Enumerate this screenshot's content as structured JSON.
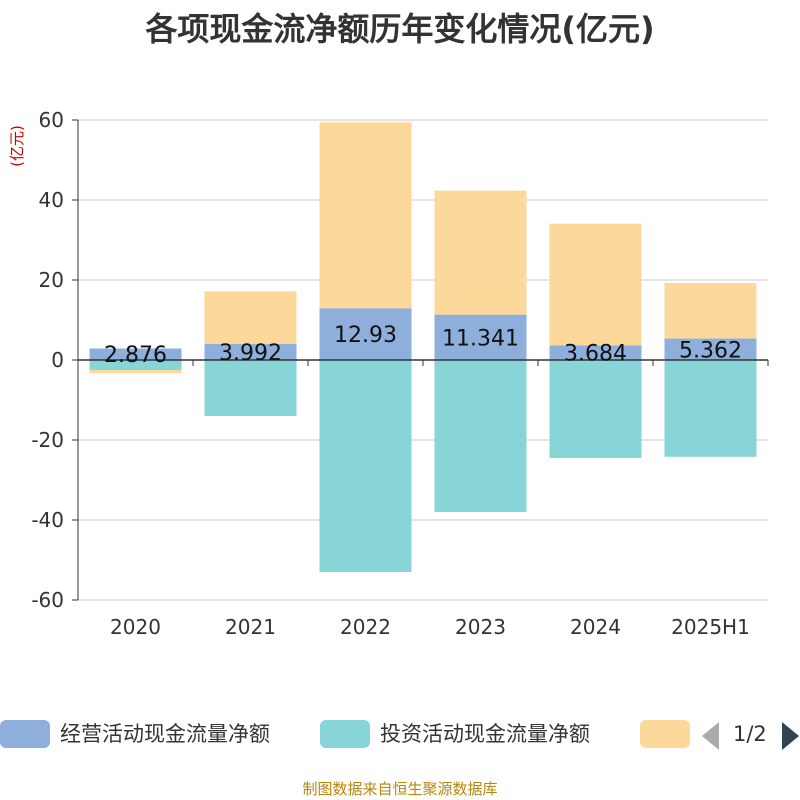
{
  "chart_data": {
    "type": "bar",
    "stacked": true,
    "title": "各项现金流净额历年变化情况(亿元)",
    "unit": "(亿元)",
    "categories": [
      "2020",
      "2021",
      "2022",
      "2023",
      "2024",
      "2025H1"
    ],
    "ylim": [
      -60,
      60
    ],
    "yticks": [
      60,
      40,
      20,
      0,
      -20,
      -40,
      -60
    ],
    "grid": true,
    "legend_position": "bottom",
    "series": [
      {
        "name": "经营活动现金流量净额",
        "color": "#8eaedc",
        "values": [
          2.876,
          3.992,
          12.93,
          11.341,
          3.684,
          5.362
        ],
        "labels": [
          "2.876",
          "3.992",
          "12.93",
          "11.341",
          "3.684",
          "5.362"
        ]
      },
      {
        "name": "投资活动现金流量净额",
        "color": "#88d5d8",
        "values": [
          -2.5,
          -14,
          -53,
          -38,
          -24.5,
          -24.2
        ]
      },
      {
        "name": "",
        "color": "#fdd89b",
        "values": [
          -0.8,
          13.2,
          46.5,
          31,
          30.4,
          13.9
        ]
      }
    ]
  },
  "legend": {
    "page_indicator": "1/2"
  },
  "source": "制图数据来自恒生聚源数据库"
}
